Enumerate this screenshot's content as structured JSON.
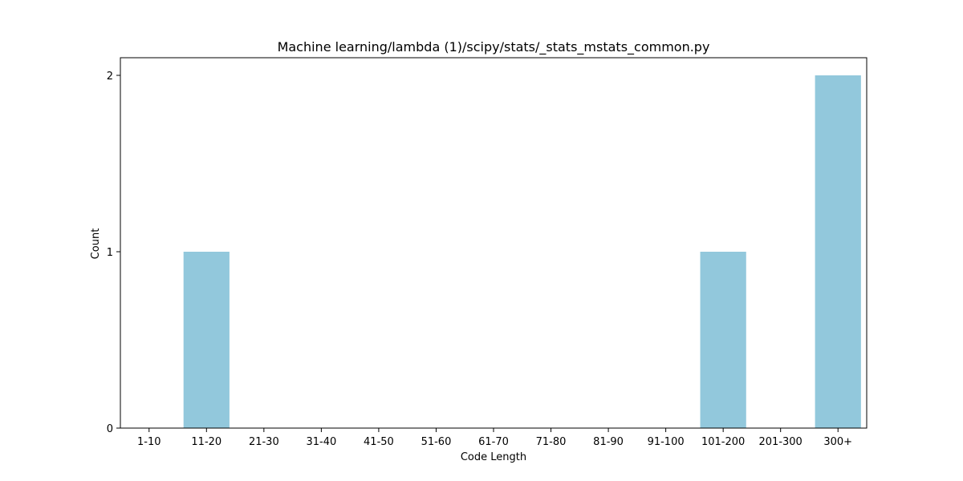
{
  "chart_data": {
    "type": "bar",
    "title": "Machine learning/lambda (1)/scipy/stats/_stats_mstats_common.py",
    "xlabel": "Code Length",
    "ylabel": "Count",
    "categories": [
      "1-10",
      "11-20",
      "21-30",
      "31-40",
      "41-50",
      "51-60",
      "61-70",
      "71-80",
      "81-90",
      "91-100",
      "101-200",
      "201-300",
      "300+"
    ],
    "values": [
      0,
      1,
      0,
      0,
      0,
      0,
      0,
      0,
      0,
      0,
      1,
      0,
      2
    ],
    "ylim": [
      0,
      2.1
    ],
    "yticks": [
      0,
      1,
      2
    ],
    "grid": false,
    "bar_color": "#92c8dc"
  }
}
